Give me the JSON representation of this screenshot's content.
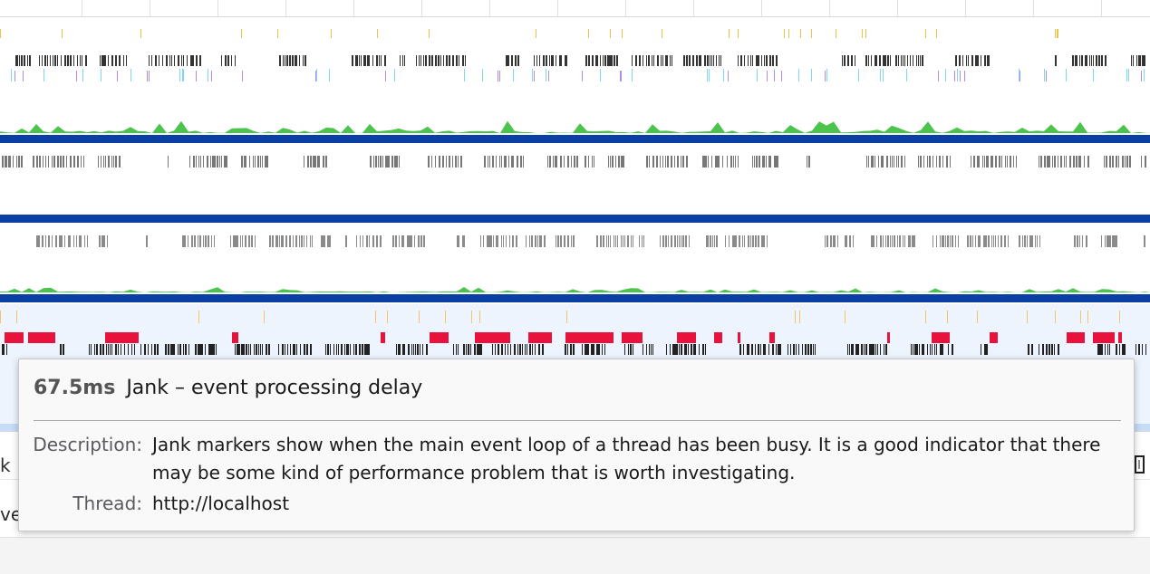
{
  "tooltip": {
    "duration": "67.5ms",
    "title": "Jank – event processing delay",
    "fields": [
      {
        "label": "Description:",
        "value": "Jank markers show when the main event loop of a thread has been busy. It is a good indicator that there may be some kind of performance problem that is worth investigating."
      },
      {
        "label": "Thread:",
        "value": "http://localhost"
      }
    ]
  },
  "panel": {
    "row1_cut_text": "k",
    "row2_cut_text": "ve"
  },
  "colors": {
    "track_separator": "#0a3fa3",
    "jank_marker": "#e8123c",
    "sample_mark": "#333333",
    "cpu_graph": "#2db82d",
    "selected_track_bg": "#edf4fd"
  },
  "icons": [
    "range-handle-icon"
  ]
}
